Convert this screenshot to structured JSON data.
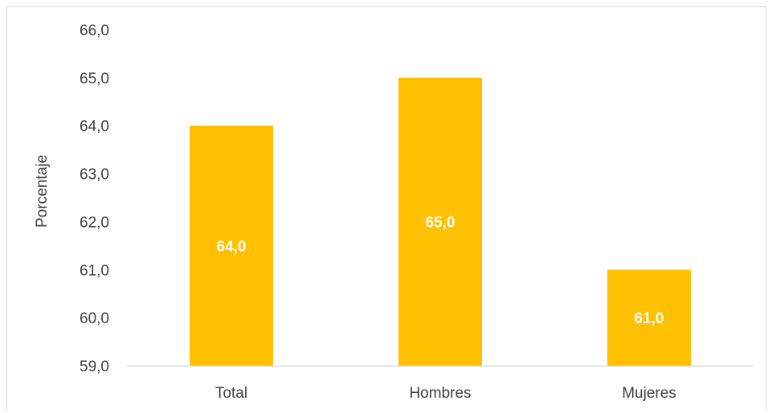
{
  "chart_data": {
    "type": "bar",
    "categories": [
      "Total",
      "Hombres",
      "Mujeres"
    ],
    "values": [
      64.0,
      65.0,
      61.0
    ],
    "data_labels": [
      "64,0",
      "65,0",
      "61,0"
    ],
    "title": "",
    "xlabel": "",
    "ylabel": "Porcentaje",
    "ylim": [
      59.0,
      66.0
    ],
    "yticks": [
      59.0,
      60.0,
      61.0,
      62.0,
      63.0,
      64.0,
      65.0,
      66.0
    ],
    "ytick_labels": [
      "59,0",
      "60,0",
      "61,0",
      "62,0",
      "63,0",
      "64,0",
      "65,0",
      "66,0"
    ],
    "grid": false,
    "legend": "none",
    "bar_color": "#FFC000",
    "data_label_color": "#FFFFFF",
    "axis_line_color": "#D9D9D9",
    "text_color": "#404040"
  }
}
